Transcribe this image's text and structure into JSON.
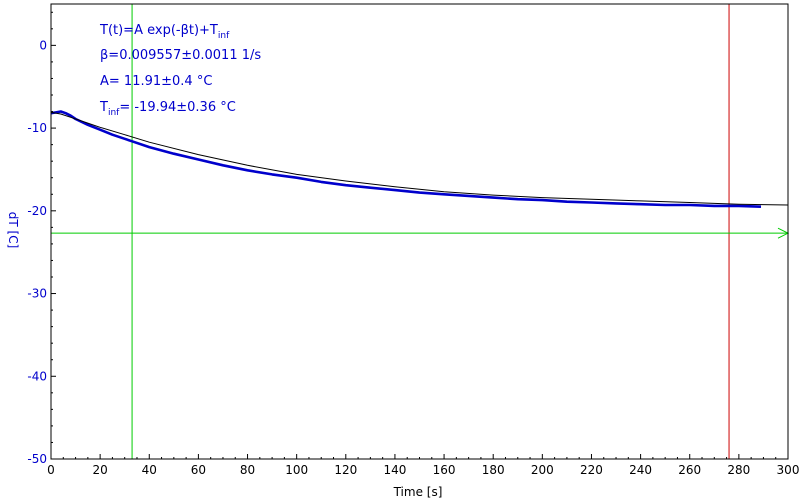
{
  "chart_data": {
    "type": "line",
    "xlabel": "Time [s]",
    "ylabel": "dT [C]",
    "xlim": [
      0,
      300
    ],
    "ylim": [
      -50,
      5
    ],
    "x_ticks": [
      0,
      20,
      40,
      60,
      80,
      100,
      120,
      140,
      160,
      180,
      200,
      220,
      240,
      260,
      280,
      300
    ],
    "y_ticks": [
      0,
      -10,
      -20,
      -30,
      -40,
      -50
    ],
    "grid": false,
    "annotations": {
      "formula_main": "T(t)=A exp(-βt)+T",
      "formula_sub": "inf",
      "beta": "β=0.009557±0.0011 1/s",
      "A": "A= 11.91±0.4 °C",
      "tinf_main": "T",
      "tinf_sub": "inf",
      "tinf_value": "= -19.94±0.36 °C"
    },
    "series": [
      {
        "kind": "measured",
        "color": "#0000cc",
        "x": [
          0,
          2,
          4,
          6,
          8,
          10,
          15,
          20,
          25,
          30,
          33,
          40,
          50,
          60,
          70,
          80,
          90,
          100,
          110,
          120,
          130,
          140,
          150,
          160,
          170,
          180,
          190,
          200,
          210,
          220,
          230,
          240,
          250,
          260,
          270,
          280,
          289
        ],
        "y": [
          -8.2,
          -8.1,
          -8.0,
          -8.2,
          -8.5,
          -8.9,
          -9.6,
          -10.2,
          -10.8,
          -11.3,
          -11.6,
          -12.3,
          -13.1,
          -13.8,
          -14.5,
          -15.1,
          -15.6,
          -16.0,
          -16.5,
          -16.9,
          -17.2,
          -17.5,
          -17.8,
          -18.0,
          -18.2,
          -18.4,
          -18.6,
          -18.7,
          -18.9,
          -19.0,
          -19.1,
          -19.2,
          -19.3,
          -19.3,
          -19.4,
          -19.4,
          -19.5
        ]
      },
      {
        "kind": "fit",
        "color": "#000000",
        "x": [
          0,
          4,
          8,
          12,
          16,
          20,
          30,
          40,
          60,
          80,
          100,
          120,
          140,
          160,
          180,
          200,
          220,
          240,
          260,
          280,
          300
        ],
        "y": [
          -8.1,
          -8.3,
          -8.7,
          -9.1,
          -9.5,
          -9.9,
          -10.8,
          -11.7,
          -13.2,
          -14.5,
          -15.6,
          -16.4,
          -17.1,
          -17.7,
          -18.1,
          -18.4,
          -18.6,
          -18.8,
          -19.0,
          -19.2,
          -19.3
        ]
      }
    ],
    "markers": {
      "green_vertical_x": 33,
      "red_vertical_x": 276,
      "green_horizontal_y": -22.7,
      "green_color": "#00cc00",
      "red_color": "#cc0000"
    },
    "colors": {
      "axis_text": "#0000cc",
      "frame": "#000000"
    }
  }
}
